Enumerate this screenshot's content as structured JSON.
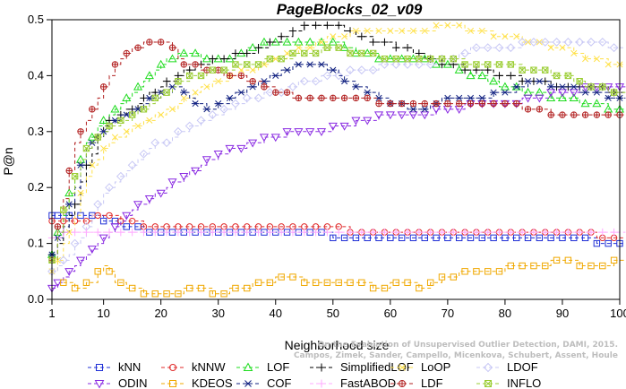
{
  "chart_data": {
    "type": "line",
    "title": "PageBlocks_02_v09",
    "xlabel": "Neighborhood size",
    "ylabel": "P@n",
    "xlim": [
      1,
      100
    ],
    "ylim": [
      0,
      0.5
    ],
    "xticks": [
      1,
      10,
      20,
      30,
      40,
      50,
      60,
      70,
      80,
      90,
      100
    ],
    "yticks": [
      0.0,
      0.1,
      0.2,
      0.3,
      0.4,
      0.5
    ],
    "credit_lines": [
      "On the Evaluation of Unsupervised Outlier Detection, DAMI, 2015.",
      "Campos, Zimek, Sander, Campello, Micenkova, Schubert, Assent, Houle"
    ],
    "legend_position": "bottom",
    "series": [
      {
        "name": "kNN",
        "color": "#1f2fd6",
        "marker": "square",
        "points": [
          [
            1,
            0.15
          ],
          [
            3,
            0.15
          ],
          [
            5,
            0.15
          ],
          [
            8,
            0.15
          ],
          [
            10,
            0.14
          ],
          [
            15,
            0.13
          ],
          [
            17,
            0.12
          ],
          [
            30,
            0.12
          ],
          [
            40,
            0.12
          ],
          [
            48,
            0.12
          ],
          [
            50,
            0.11
          ],
          [
            60,
            0.11
          ],
          [
            70,
            0.11
          ],
          [
            80,
            0.11
          ],
          [
            90,
            0.11
          ],
          [
            95,
            0.11
          ],
          [
            96,
            0.1
          ],
          [
            100,
            0.1
          ]
        ]
      },
      {
        "name": "kNNW",
        "color": "#e02a2a",
        "marker": "circle",
        "points": [
          [
            1,
            0.14
          ],
          [
            3,
            0.14
          ],
          [
            5,
            0.14
          ],
          [
            10,
            0.15
          ],
          [
            15,
            0.14
          ],
          [
            17,
            0.13
          ],
          [
            30,
            0.13
          ],
          [
            50,
            0.13
          ],
          [
            55,
            0.12
          ],
          [
            70,
            0.12
          ],
          [
            80,
            0.12
          ],
          [
            90,
            0.12
          ],
          [
            95,
            0.12
          ],
          [
            96,
            0.11
          ],
          [
            100,
            0.11
          ]
        ]
      },
      {
        "name": "LOF",
        "color": "#1edc1e",
        "marker": "triangle",
        "points": [
          [
            1,
            0.08
          ],
          [
            3,
            0.15
          ],
          [
            5,
            0.22
          ],
          [
            7,
            0.28
          ],
          [
            10,
            0.32
          ],
          [
            13,
            0.35
          ],
          [
            16,
            0.38
          ],
          [
            20,
            0.42
          ],
          [
            24,
            0.44
          ],
          [
            28,
            0.43
          ],
          [
            32,
            0.43
          ],
          [
            36,
            0.45
          ],
          [
            40,
            0.46
          ],
          [
            45,
            0.46
          ],
          [
            50,
            0.46
          ],
          [
            55,
            0.44
          ],
          [
            60,
            0.43
          ],
          [
            65,
            0.43
          ],
          [
            70,
            0.42
          ],
          [
            75,
            0.4
          ],
          [
            80,
            0.38
          ],
          [
            85,
            0.37
          ],
          [
            90,
            0.36
          ],
          [
            95,
            0.35
          ],
          [
            100,
            0.34
          ]
        ]
      },
      {
        "name": "SimplifiedLOF",
        "color": "#000000",
        "marker": "plus",
        "points": [
          [
            1,
            0.08
          ],
          [
            3,
            0.12
          ],
          [
            5,
            0.17
          ],
          [
            7,
            0.24
          ],
          [
            10,
            0.31
          ],
          [
            13,
            0.33
          ],
          [
            16,
            0.35
          ],
          [
            20,
            0.38
          ],
          [
            23,
            0.4
          ],
          [
            27,
            0.42
          ],
          [
            30,
            0.43
          ],
          [
            35,
            0.44
          ],
          [
            40,
            0.46
          ],
          [
            43,
            0.48
          ],
          [
            47,
            0.49
          ],
          [
            51,
            0.49
          ],
          [
            54,
            0.47
          ],
          [
            58,
            0.46
          ],
          [
            62,
            0.45
          ],
          [
            66,
            0.43
          ],
          [
            70,
            0.42
          ],
          [
            75,
            0.41
          ],
          [
            80,
            0.4
          ],
          [
            85,
            0.39
          ],
          [
            90,
            0.38
          ],
          [
            95,
            0.38
          ],
          [
            100,
            0.37
          ]
        ]
      },
      {
        "name": "LoOP",
        "color": "#ffe14a",
        "marker": "x",
        "points": [
          [
            1,
            0.05
          ],
          [
            4,
            0.12
          ],
          [
            7,
            0.22
          ],
          [
            10,
            0.27
          ],
          [
            14,
            0.3
          ],
          [
            18,
            0.32
          ],
          [
            22,
            0.34
          ],
          [
            26,
            0.37
          ],
          [
            30,
            0.39
          ],
          [
            35,
            0.41
          ],
          [
            40,
            0.43
          ],
          [
            45,
            0.45
          ],
          [
            50,
            0.47
          ],
          [
            55,
            0.48
          ],
          [
            60,
            0.48
          ],
          [
            65,
            0.48
          ],
          [
            70,
            0.49
          ],
          [
            75,
            0.48
          ],
          [
            80,
            0.47
          ],
          [
            85,
            0.46
          ],
          [
            90,
            0.45
          ],
          [
            95,
            0.43
          ],
          [
            100,
            0.42
          ]
        ]
      },
      {
        "name": "LDOF",
        "color": "#c8c8f5",
        "marker": "diamond",
        "points": [
          [
            1,
            0.05
          ],
          [
            4,
            0.08
          ],
          [
            7,
            0.13
          ],
          [
            10,
            0.19
          ],
          [
            14,
            0.23
          ],
          [
            18,
            0.27
          ],
          [
            22,
            0.29
          ],
          [
            26,
            0.31
          ],
          [
            30,
            0.33
          ],
          [
            35,
            0.36
          ],
          [
            40,
            0.37
          ],
          [
            45,
            0.39
          ],
          [
            50,
            0.4
          ],
          [
            55,
            0.41
          ],
          [
            60,
            0.42
          ],
          [
            65,
            0.42
          ],
          [
            70,
            0.43
          ],
          [
            75,
            0.45
          ],
          [
            80,
            0.45
          ],
          [
            85,
            0.46
          ],
          [
            90,
            0.46
          ],
          [
            95,
            0.46
          ],
          [
            100,
            0.45
          ]
        ]
      },
      {
        "name": "ODIN",
        "color": "#8a2be2",
        "marker": "triangle-down",
        "points": [
          [
            1,
            0.02
          ],
          [
            3,
            0.04
          ],
          [
            6,
            0.07
          ],
          [
            9,
            0.1
          ],
          [
            12,
            0.13
          ],
          [
            15,
            0.16
          ],
          [
            18,
            0.18
          ],
          [
            21,
            0.2
          ],
          [
            24,
            0.22
          ],
          [
            27,
            0.24
          ],
          [
            30,
            0.26
          ],
          [
            33,
            0.27
          ],
          [
            36,
            0.28
          ],
          [
            40,
            0.29
          ],
          [
            44,
            0.3
          ],
          [
            48,
            0.3
          ],
          [
            52,
            0.31
          ],
          [
            56,
            0.32
          ],
          [
            60,
            0.33
          ],
          [
            65,
            0.33
          ],
          [
            70,
            0.34
          ],
          [
            75,
            0.35
          ],
          [
            80,
            0.35
          ],
          [
            85,
            0.36
          ],
          [
            90,
            0.37
          ],
          [
            95,
            0.38
          ],
          [
            100,
            0.38
          ]
        ]
      },
      {
        "name": "KDEOS",
        "color": "#f0a800",
        "marker": "square",
        "points": [
          [
            3,
            0.03
          ],
          [
            5,
            0.02
          ],
          [
            8,
            0.03
          ],
          [
            10,
            0.06
          ],
          [
            12,
            0.03
          ],
          [
            15,
            0.02
          ],
          [
            18,
            0.01
          ],
          [
            22,
            0.01
          ],
          [
            26,
            0.02
          ],
          [
            30,
            0.01
          ],
          [
            34,
            0.02
          ],
          [
            38,
            0.03
          ],
          [
            42,
            0.04
          ],
          [
            46,
            0.03
          ],
          [
            50,
            0.03
          ],
          [
            54,
            0.03
          ],
          [
            58,
            0.02
          ],
          [
            62,
            0.03
          ],
          [
            66,
            0.02
          ],
          [
            70,
            0.04
          ],
          [
            74,
            0.05
          ],
          [
            78,
            0.05
          ],
          [
            82,
            0.06
          ],
          [
            86,
            0.06
          ],
          [
            90,
            0.07
          ],
          [
            94,
            0.06
          ],
          [
            97,
            0.06
          ],
          [
            100,
            0.07
          ]
        ]
      },
      {
        "name": "COF",
        "color": "#102080",
        "marker": "asterisk",
        "points": [
          [
            1,
            0.08
          ],
          [
            3,
            0.13
          ],
          [
            5,
            0.2
          ],
          [
            7,
            0.27
          ],
          [
            10,
            0.3
          ],
          [
            13,
            0.33
          ],
          [
            16,
            0.34
          ],
          [
            20,
            0.37
          ],
          [
            23,
            0.38
          ],
          [
            26,
            0.35
          ],
          [
            29,
            0.34
          ],
          [
            32,
            0.36
          ],
          [
            36,
            0.38
          ],
          [
            40,
            0.4
          ],
          [
            44,
            0.42
          ],
          [
            48,
            0.42
          ],
          [
            52,
            0.39
          ],
          [
            56,
            0.37
          ],
          [
            60,
            0.35
          ],
          [
            65,
            0.34
          ],
          [
            70,
            0.36
          ],
          [
            75,
            0.36
          ],
          [
            80,
            0.37
          ],
          [
            85,
            0.39
          ],
          [
            90,
            0.38
          ],
          [
            95,
            0.37
          ],
          [
            100,
            0.36
          ]
        ]
      },
      {
        "name": "FastABOD",
        "color": "#ffaaff",
        "marker": "plus",
        "points": [
          [
            1,
            0.11
          ],
          [
            5,
            0.12
          ],
          [
            10,
            0.12
          ],
          [
            20,
            0.12
          ],
          [
            30,
            0.12
          ],
          [
            40,
            0.12
          ],
          [
            50,
            0.12
          ],
          [
            60,
            0.12
          ],
          [
            70,
            0.12
          ],
          [
            80,
            0.12
          ],
          [
            90,
            0.12
          ],
          [
            95,
            0.12
          ],
          [
            100,
            0.12
          ]
        ]
      },
      {
        "name": "LDF",
        "color": "#b22020",
        "marker": "circle-plus",
        "points": [
          [
            1,
            0.07
          ],
          [
            3,
            0.18
          ],
          [
            5,
            0.28
          ],
          [
            7,
            0.32
          ],
          [
            9,
            0.36
          ],
          [
            11,
            0.4
          ],
          [
            13,
            0.43
          ],
          [
            15,
            0.45
          ],
          [
            18,
            0.46
          ],
          [
            21,
            0.46
          ],
          [
            24,
            0.42
          ],
          [
            28,
            0.41
          ],
          [
            32,
            0.4
          ],
          [
            36,
            0.39
          ],
          [
            40,
            0.37
          ],
          [
            45,
            0.36
          ],
          [
            50,
            0.36
          ],
          [
            55,
            0.36
          ],
          [
            60,
            0.35
          ],
          [
            65,
            0.35
          ],
          [
            70,
            0.35
          ],
          [
            75,
            0.35
          ],
          [
            80,
            0.35
          ],
          [
            85,
            0.34
          ],
          [
            90,
            0.33
          ],
          [
            95,
            0.33
          ],
          [
            100,
            0.33
          ]
        ]
      },
      {
        "name": "INFLO",
        "color": "#9acd32",
        "marker": "square-x",
        "points": [
          [
            1,
            0.07
          ],
          [
            3,
            0.16
          ],
          [
            5,
            0.22
          ],
          [
            7,
            0.27
          ],
          [
            10,
            0.3
          ],
          [
            14,
            0.32
          ],
          [
            18,
            0.35
          ],
          [
            22,
            0.38
          ],
          [
            26,
            0.4
          ],
          [
            30,
            0.41
          ],
          [
            35,
            0.42
          ],
          [
            40,
            0.43
          ],
          [
            45,
            0.44
          ],
          [
            50,
            0.45
          ],
          [
            55,
            0.44
          ],
          [
            60,
            0.43
          ],
          [
            65,
            0.43
          ],
          [
            70,
            0.43
          ],
          [
            75,
            0.42
          ],
          [
            80,
            0.42
          ],
          [
            85,
            0.41
          ],
          [
            90,
            0.4
          ],
          [
            95,
            0.38
          ],
          [
            100,
            0.37
          ]
        ]
      }
    ]
  }
}
